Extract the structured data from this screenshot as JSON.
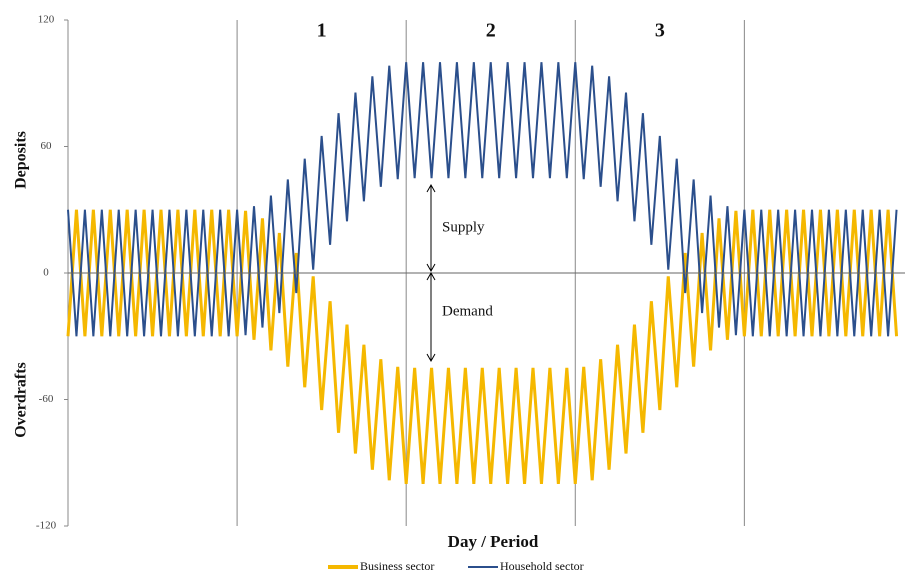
{
  "chart_data": {
    "type": "line",
    "y_label_top": "Deposits",
    "y_label_bottom": "Overdrafts",
    "x_label": "Day / Period",
    "period_labels": [
      "1",
      "2",
      "3"
    ],
    "period_boundaries": [
      20,
      40,
      60,
      80
    ],
    "annotations": [
      "Supply",
      "Demand"
    ],
    "xlim": [
      0,
      99
    ],
    "ylim": [
      -120,
      120
    ],
    "yticks": [
      -120,
      -60,
      0,
      60,
      120
    ],
    "x": [
      0,
      1,
      2,
      3,
      4,
      5,
      6,
      7,
      8,
      9,
      10,
      11,
      12,
      13,
      14,
      15,
      16,
      17,
      18,
      19,
      20,
      21,
      22,
      23,
      24,
      25,
      26,
      27,
      28,
      29,
      30,
      31,
      32,
      33,
      34,
      35,
      36,
      37,
      38,
      39,
      40,
      41,
      42,
      43,
      44,
      45,
      46,
      47,
      48,
      49,
      50,
      51,
      52,
      53,
      54,
      55,
      56,
      57,
      58,
      59,
      60,
      61,
      62,
      63,
      64,
      65,
      66,
      67,
      68,
      69,
      70,
      71,
      72,
      73,
      74,
      75,
      76,
      77,
      78,
      79,
      80,
      81,
      82,
      83,
      84,
      85,
      86,
      87,
      88,
      89,
      90,
      91,
      92,
      93,
      94,
      95,
      96,
      97,
      98
    ],
    "series": [
      {
        "name": "Business sector",
        "color": "#f5b800",
        "values": [
          -30,
          30,
          -30,
          30,
          -30,
          30,
          -30,
          30,
          -30,
          30,
          -30,
          30,
          -30,
          30,
          -30,
          30,
          -30,
          30,
          -30,
          30,
          -30,
          29.5,
          -31.7,
          25.9,
          -36.7,
          19,
          -44.4,
          9.5,
          -54.2,
          -1.6,
          -65,
          -13.4,
          -75.8,
          -24.5,
          -85.6,
          -34,
          -93.3,
          -40.9,
          -98.3,
          -44.5,
          -100,
          -45,
          -100,
          -45,
          -100,
          -45,
          -100,
          -45,
          -100,
          -45,
          -100,
          -45,
          -100,
          -45,
          -100,
          -45,
          -100,
          -45,
          -100,
          -45,
          -100,
          -44.5,
          -98.3,
          -40.9,
          -93.3,
          -34,
          -85.6,
          -24.5,
          -75.8,
          -13.4,
          -65,
          -1.6,
          -54.2,
          9.5,
          -44.4,
          19,
          -36.7,
          25.9,
          -31.7,
          29.5,
          -30,
          30,
          -30,
          30,
          -30,
          30,
          -30,
          30,
          -30,
          30,
          -30,
          30,
          -30,
          30,
          -30,
          30,
          -30,
          30,
          -30
        ]
      },
      {
        "name": "Household sector",
        "color": "#2b4f8c",
        "values": [
          30,
          -30,
          30,
          -30,
          30,
          -30,
          30,
          -30,
          30,
          -30,
          30,
          -30,
          30,
          -30,
          30,
          -30,
          30,
          -30,
          30,
          -30,
          30,
          -29.5,
          31.7,
          -25.9,
          36.7,
          -19,
          44.4,
          -9.5,
          54.2,
          1.6,
          65,
          13.4,
          75.8,
          24.5,
          85.6,
          34,
          93.3,
          40.9,
          98.3,
          44.5,
          100,
          45,
          100,
          45,
          100,
          45,
          100,
          45,
          100,
          45,
          100,
          45,
          100,
          45,
          100,
          45,
          100,
          45,
          100,
          45,
          100,
          44.5,
          98.3,
          40.9,
          93.3,
          34,
          85.6,
          24.5,
          75.8,
          13.4,
          65,
          1.6,
          54.2,
          -9.5,
          44.4,
          -19,
          36.7,
          -25.9,
          31.7,
          -29.5,
          30,
          -30,
          30,
          -30,
          30,
          -30,
          30,
          -30,
          30,
          -30,
          30,
          -30,
          30,
          -30,
          30,
          -30,
          30,
          -30,
          30
        ]
      }
    ]
  }
}
